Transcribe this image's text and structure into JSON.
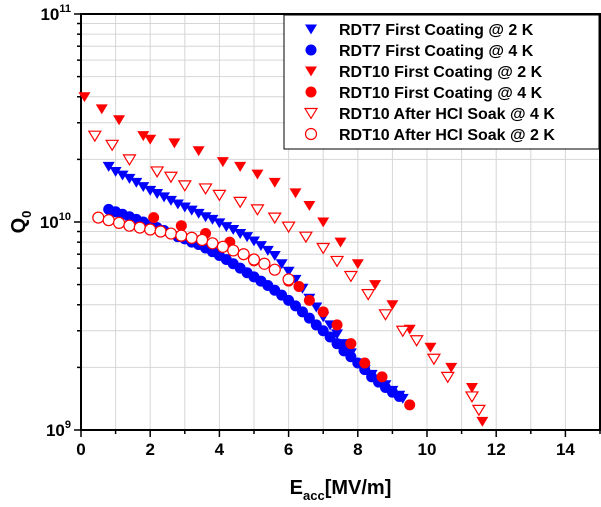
{
  "chart_data": {
    "type": "scatter",
    "xlabel": {
      "main": "E",
      "sub": "acc",
      "rest": "[MV/m]"
    },
    "ylabel": {
      "main": "Q",
      "sub": "0"
    },
    "xlim": [
      0,
      15
    ],
    "ylim": [
      1000000000,
      100000000000
    ],
    "yscale": "log",
    "grid": true,
    "legend_position": "top-right",
    "x_ticks": [
      0,
      2,
      4,
      6,
      8,
      10,
      12,
      14
    ],
    "x_tick_labels": [
      "0",
      "2",
      "4",
      "6",
      "8",
      "10",
      "12",
      "14"
    ],
    "y_ticks": [
      {
        "value": 1000000000,
        "base": "10",
        "exp": "9"
      },
      {
        "value": 10000000000,
        "base": "10",
        "exp": "10"
      },
      {
        "value": 100000000000,
        "base": "10",
        "exp": "11"
      }
    ],
    "series": [
      {
        "name": "RDT7 First Coating @ 2 K",
        "marker": "triangle-down",
        "filled": true,
        "color": "#0000ff",
        "points": [
          [
            0.8,
            18500000000.0
          ],
          [
            1.0,
            17500000000.0
          ],
          [
            1.2,
            16800000000.0
          ],
          [
            1.4,
            16200000000.0
          ],
          [
            1.6,
            15500000000.0
          ],
          [
            1.8,
            14800000000.0
          ],
          [
            2.0,
            14200000000.0
          ],
          [
            2.2,
            13700000000.0
          ],
          [
            2.4,
            13200000000.0
          ],
          [
            2.6,
            12700000000.0
          ],
          [
            2.8,
            12200000000.0
          ],
          [
            3.0,
            11800000000.0
          ],
          [
            3.2,
            11400000000.0
          ],
          [
            3.4,
            11000000000.0
          ],
          [
            3.6,
            10600000000.0
          ],
          [
            3.8,
            10300000000.0
          ],
          [
            4.0,
            9900000000.0
          ],
          [
            4.2,
            9500000000.0
          ],
          [
            4.4,
            9200000000.0
          ],
          [
            4.6,
            8800000000.0
          ],
          [
            4.8,
            8500000000.0
          ],
          [
            5.0,
            8100000000.0
          ],
          [
            5.2,
            7700000000.0
          ],
          [
            5.4,
            7300000000.0
          ],
          [
            5.6,
            6900000000.0
          ],
          [
            5.8,
            6300000000.0
          ],
          [
            6.0,
            5800000000.0
          ],
          [
            6.2,
            5300000000.0
          ],
          [
            6.4,
            4800000000.0
          ],
          [
            6.6,
            4300000000.0
          ],
          [
            6.8,
            3900000000.0
          ],
          [
            7.0,
            3500000000.0
          ],
          [
            7.2,
            3200000000.0
          ],
          [
            7.4,
            2900000000.0
          ],
          [
            7.6,
            2600000000.0
          ],
          [
            7.8,
            2350000000.0
          ],
          [
            8.0,
            2100000000.0
          ],
          [
            8.2,
            1950000000.0
          ],
          [
            8.4,
            1850000000.0
          ],
          [
            8.6,
            1750000000.0
          ],
          [
            8.8,
            1650000000.0
          ],
          [
            9.0,
            1550000000.0
          ],
          [
            9.2,
            1470000000.0
          ],
          [
            9.3,
            1420000000.0
          ]
        ]
      },
      {
        "name": "RDT7 First Coating @ 4 K",
        "marker": "circle",
        "filled": true,
        "color": "#0000ff",
        "points": [
          [
            0.8,
            11500000000.0
          ],
          [
            1.0,
            11200000000.0
          ],
          [
            1.2,
            10900000000.0
          ],
          [
            1.4,
            10600000000.0
          ],
          [
            1.6,
            10300000000.0
          ],
          [
            1.8,
            10000000000.0
          ],
          [
            2.0,
            9700000000.0
          ],
          [
            2.2,
            9400000000.0
          ],
          [
            2.4,
            9100000000.0
          ],
          [
            2.6,
            8800000000.0
          ],
          [
            2.8,
            8500000000.0
          ],
          [
            3.0,
            8300000000.0
          ],
          [
            3.2,
            8000000000.0
          ],
          [
            3.4,
            7800000000.0
          ],
          [
            3.6,
            7500000000.0
          ],
          [
            3.8,
            7200000000.0
          ],
          [
            4.0,
            6900000000.0
          ],
          [
            4.2,
            6600000000.0
          ],
          [
            4.4,
            6300000000.0
          ],
          [
            4.6,
            6000000000.0
          ],
          [
            4.8,
            5700000000.0
          ],
          [
            5.0,
            5450000000.0
          ],
          [
            5.2,
            5200000000.0
          ],
          [
            5.4,
            4950000000.0
          ],
          [
            5.6,
            4700000000.0
          ],
          [
            5.8,
            4450000000.0
          ],
          [
            6.0,
            4200000000.0
          ],
          [
            6.2,
            3950000000.0
          ],
          [
            6.4,
            3700000000.0
          ],
          [
            6.6,
            3450000000.0
          ],
          [
            6.8,
            3200000000.0
          ],
          [
            7.0,
            3000000000.0
          ],
          [
            7.2,
            2800000000.0
          ],
          [
            7.4,
            2600000000.0
          ],
          [
            7.6,
            2400000000.0
          ],
          [
            7.8,
            2250000000.0
          ],
          [
            8.0,
            2100000000.0
          ],
          [
            8.2,
            1950000000.0
          ],
          [
            8.4,
            1800000000.0
          ],
          [
            8.6,
            1700000000.0
          ],
          [
            8.8,
            1600000000.0
          ],
          [
            9.0,
            1520000000.0
          ],
          [
            9.2,
            1450000000.0
          ]
        ]
      },
      {
        "name": "RDT10 First Coating @ 2 K",
        "marker": "triangle-down",
        "filled": true,
        "color": "#ff0000",
        "points": [
          [
            0.1,
            40000000000.0
          ],
          [
            0.6,
            35000000000.0
          ],
          [
            1.1,
            31000000000.0
          ],
          [
            1.8,
            26000000000.0
          ],
          [
            2.0,
            25000000000.0
          ],
          [
            2.7,
            24000000000.0
          ],
          [
            3.4,
            22000000000.0
          ],
          [
            4.1,
            19500000000.0
          ],
          [
            4.6,
            18500000000.0
          ],
          [
            5.1,
            17000000000.0
          ],
          [
            5.6,
            15500000000.0
          ],
          [
            6.2,
            13800000000.0
          ],
          [
            6.6,
            12000000000.0
          ],
          [
            7.0,
            10000000000.0
          ],
          [
            7.5,
            8000000000.0
          ],
          [
            8.0,
            6300000000.0
          ],
          [
            8.5,
            5000000000.0
          ],
          [
            9.0,
            4000000000.0
          ],
          [
            9.5,
            3050000000.0
          ],
          [
            10.1,
            2500000000.0
          ],
          [
            10.7,
            2000000000.0
          ],
          [
            11.3,
            1600000000.0
          ],
          [
            11.6,
            1100000000.0
          ]
        ]
      },
      {
        "name": "RDT10 First Coating @ 4 K",
        "marker": "circle",
        "filled": true,
        "color": "#ff0000",
        "points": [
          [
            2.1,
            10500000000.0
          ],
          [
            2.9,
            9600000000.0
          ],
          [
            3.6,
            8800000000.0
          ],
          [
            4.3,
            8000000000.0
          ],
          [
            5.0,
            6500000000.0
          ],
          [
            6.0,
            5200000000.0
          ],
          [
            6.3,
            4900000000.0
          ],
          [
            6.6,
            4200000000.0
          ],
          [
            7.0,
            3700000000.0
          ],
          [
            7.4,
            3200000000.0
          ],
          [
            7.8,
            2600000000.0
          ],
          [
            8.2,
            2100000000.0
          ],
          [
            8.7,
            1800000000.0
          ],
          [
            9.5,
            1320000000.0
          ]
        ]
      },
      {
        "name": "RDT10 After HCl Soak @ 4 K",
        "marker": "triangle-down",
        "filled": false,
        "color": "#ff0000",
        "points": [
          [
            0.4,
            26000000000.0
          ],
          [
            0.9,
            23500000000.0
          ],
          [
            1.4,
            20000000000.0
          ],
          [
            2.2,
            17500000000.0
          ],
          [
            2.6,
            16500000000.0
          ],
          [
            3.0,
            15000000000.0
          ],
          [
            3.6,
            14500000000.0
          ],
          [
            4.0,
            13500000000.0
          ],
          [
            4.6,
            12500000000.0
          ],
          [
            5.1,
            11500000000.0
          ],
          [
            5.6,
            10500000000.0
          ],
          [
            6.0,
            9500000000.0
          ],
          [
            6.5,
            8500000000.0
          ],
          [
            7.0,
            7500000000.0
          ],
          [
            7.4,
            6500000000.0
          ],
          [
            7.8,
            5500000000.0
          ],
          [
            8.3,
            4500000000.0
          ],
          [
            8.8,
            3600000000.0
          ],
          [
            9.3,
            3000000000.0
          ],
          [
            9.7,
            2700000000.0
          ],
          [
            10.2,
            2200000000.0
          ],
          [
            10.6,
            1800000000.0
          ],
          [
            11.3,
            1450000000.0
          ],
          [
            11.5,
            1250000000.0
          ]
        ]
      },
      {
        "name": "RDT10 After HCl Soak @ 2 K",
        "marker": "circle",
        "filled": false,
        "color": "#ff0000",
        "points": [
          [
            0.5,
            10500000000.0
          ],
          [
            0.8,
            10200000000.0
          ],
          [
            1.1,
            9900000000.0
          ],
          [
            1.4,
            9600000000.0
          ],
          [
            1.7,
            9400000000.0
          ],
          [
            2.0,
            9200000000.0
          ],
          [
            2.3,
            9000000000.0
          ],
          [
            2.6,
            8800000000.0
          ],
          [
            2.9,
            8600000000.0
          ],
          [
            3.2,
            8400000000.0
          ],
          [
            3.5,
            8200000000.0
          ],
          [
            3.8,
            7900000000.0
          ],
          [
            4.1,
            7600000000.0
          ],
          [
            4.4,
            7300000000.0
          ],
          [
            4.7,
            7000000000.0
          ],
          [
            5.0,
            6600000000.0
          ],
          [
            5.3,
            6300000000.0
          ],
          [
            5.6,
            5900000000.0
          ],
          [
            6.0,
            5300000000.0
          ]
        ]
      }
    ]
  }
}
